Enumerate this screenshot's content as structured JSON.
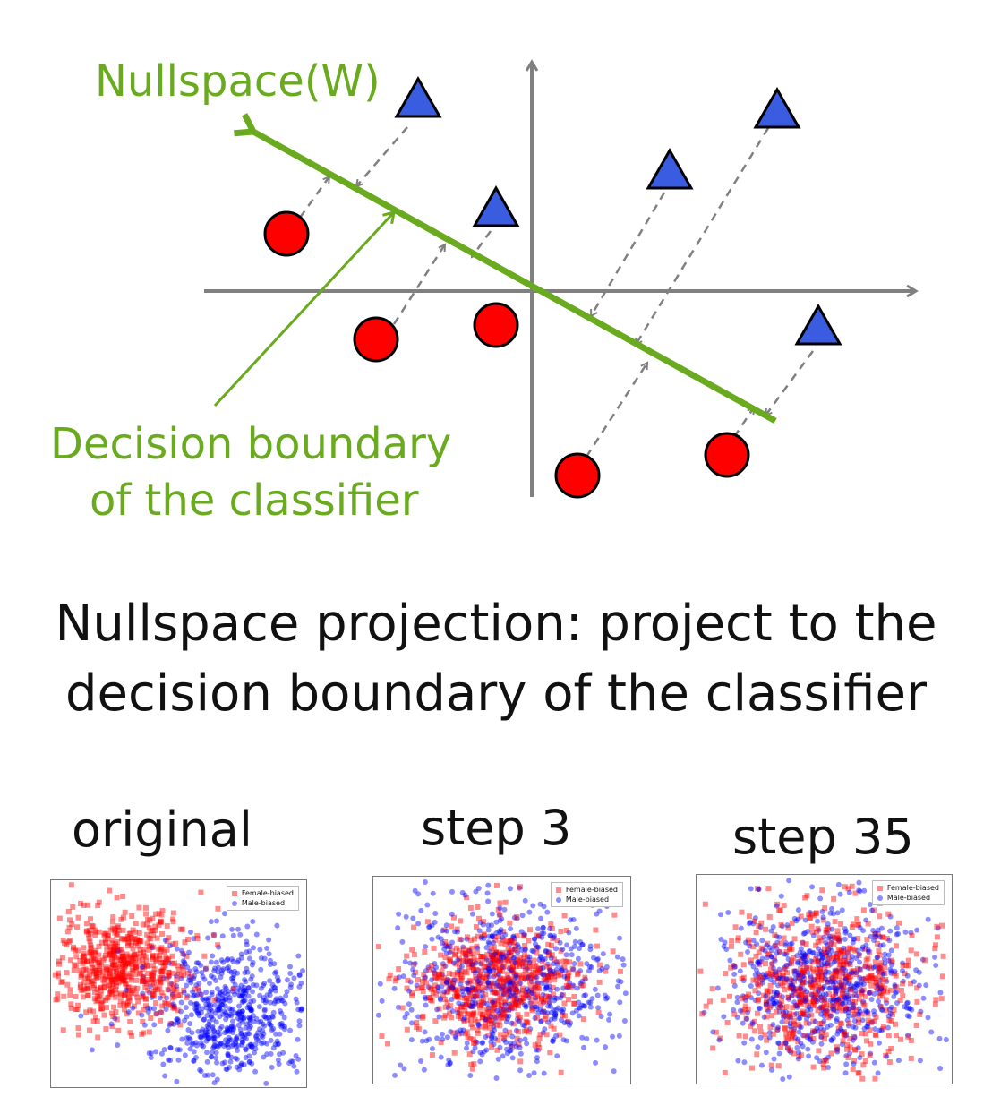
{
  "diagram": {
    "nullspace_label": "Nullspace(W)",
    "boundary_label_line1": "Decision boundary",
    "boundary_label_line2": "of the classifier",
    "colors": {
      "green": "#6aaa1e",
      "axis": "#808080",
      "circle": "#ff0000",
      "triangle": "#3a5ce0",
      "dash": "#808080"
    },
    "icons": [
      "red-circle-icon",
      "blue-triangle-icon",
      "arrow-icon"
    ]
  },
  "caption": {
    "line1": "Nullspace projection: project to the",
    "line2": "decision boundary of the classifier"
  },
  "panels": [
    {
      "title": "original",
      "legend": [
        "Female-biased",
        "Male-biased"
      ],
      "state": "separated"
    },
    {
      "title": "step 3",
      "legend": [
        "Female-biased",
        "Male-biased"
      ],
      "state": "partially mixed"
    },
    {
      "title": "step 35",
      "legend": [
        "Female-biased",
        "Male-biased"
      ],
      "state": "fully mixed"
    }
  ]
}
